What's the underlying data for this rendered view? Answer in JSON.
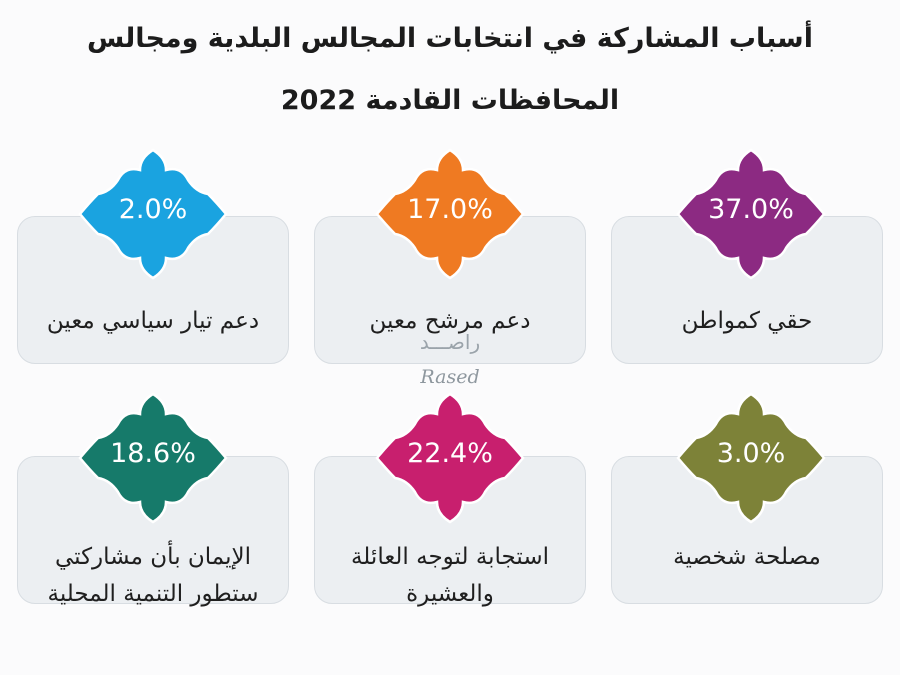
{
  "title": "أسباب المشاركة في انتخابات المجالس البلدية ومجالس المحافظات القادمة 2022",
  "watermark": {
    "arabic": "راصـــد",
    "latin": "Rased"
  },
  "chart_data": {
    "type": "infographic",
    "unit": "%",
    "items": [
      {
        "label": "حقي كمواطن",
        "value": 37.0,
        "display": "37.0%",
        "color": "#8c2a82"
      },
      {
        "label": "دعم مرشح معين",
        "value": 17.0,
        "display": "17.0%",
        "color": "#ef7a22"
      },
      {
        "label": "دعم تيار سياسي معين",
        "value": 2.0,
        "display": "2.0%",
        "color": "#1aa3e0"
      },
      {
        "label": "مصلحة شخصية",
        "value": 3.0,
        "display": "3.0%",
        "color": "#7d8238"
      },
      {
        "label": "استجابة لتوجه العائلة والعشيرة",
        "value": 22.4,
        "display": "22.4%",
        "color": "#c81f6e"
      },
      {
        "label": "الإيمان بأن مشاركتي ستطور التنمية المحلية",
        "value": 18.6,
        "display": "18.6%",
        "color": "#167a6a"
      }
    ]
  }
}
